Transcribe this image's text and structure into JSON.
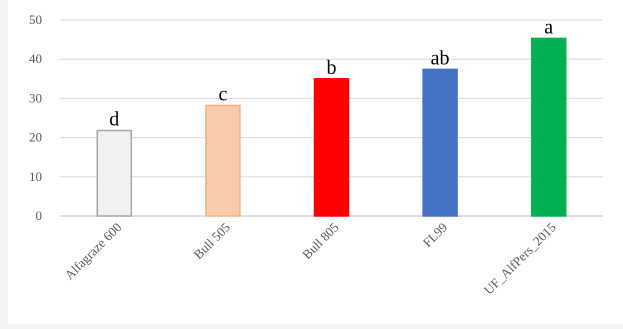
{
  "chart_data": {
    "type": "bar",
    "categories": [
      "Alfagraze 600",
      "Bull 505",
      "Bull 805",
      "FL99",
      "UF_AlfPers_2015"
    ],
    "values": [
      21.8,
      28.2,
      35.0,
      37.4,
      45.3
    ],
    "data_labels": [
      "d",
      "c",
      "b",
      "ab",
      "a"
    ],
    "colors": [
      "#f2f2f2",
      "#f8cbad",
      "#ff0000",
      "#4472c4",
      "#00b050"
    ],
    "border_colors": [
      "#a6a6a6",
      "#f4b183",
      "#ff0000",
      "#4472c4",
      "#00b050"
    ],
    "title": "",
    "xlabel": "",
    "ylabel": "",
    "ylim": [
      0,
      50
    ],
    "yticks": [
      0,
      10,
      20,
      30,
      40,
      50
    ],
    "grid": true,
    "legend": "none"
  }
}
